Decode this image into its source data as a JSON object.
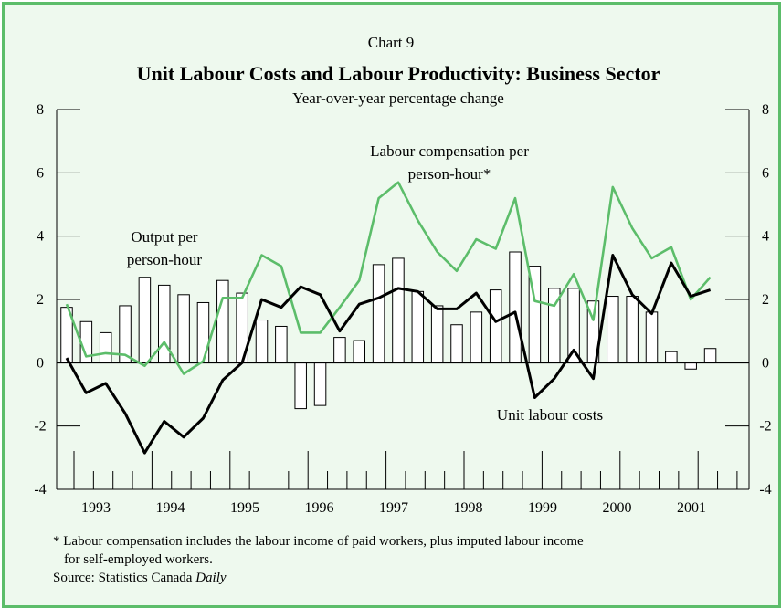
{
  "header": {
    "chart_number": "Chart 9",
    "title": "Unit Labour Costs and Labour Productivity: Business Sector",
    "subtitle": "Year-over-year percentage change"
  },
  "annotations": {
    "output_line1": "Output per",
    "output_line2": "person-hour",
    "comp_line1": "Labour compensation per",
    "comp_line2": "person-hour*",
    "ulc": "Unit labour costs"
  },
  "footnotes": {
    "note_line1": "* Labour compensation includes the labour income of paid workers, plus imputed labour income",
    "note_line2": "for self-employed workers.",
    "source_prefix": "Source: Statistics Canada ",
    "source_name": "Daily"
  },
  "colors": {
    "frame": "#5cbd6a",
    "background": "#eef9ee",
    "compensation_line": "#5cbd6a",
    "ulc_line": "#000000",
    "bar_fill": "#ffffff",
    "bar_stroke": "#000000"
  },
  "chart_data": {
    "type": "bar",
    "x_labels": [
      "1993",
      "1994",
      "1995",
      "1996",
      "1997",
      "1998",
      "1999",
      "2000",
      "2001"
    ],
    "ylim": [
      -4,
      8
    ],
    "yticks": [
      -4,
      -2,
      0,
      2,
      4,
      6,
      8
    ],
    "grid": false,
    "series": [
      {
        "name": "Output per person-hour",
        "type": "bar",
        "values": [
          1.75,
          1.3,
          0.95,
          1.8,
          2.7,
          2.45,
          2.15,
          1.9,
          2.6,
          2.2,
          1.35,
          1.15,
          -1.45,
          -1.35,
          0.8,
          0.7,
          3.1,
          3.3,
          2.25,
          1.8,
          1.2,
          1.6,
          2.3,
          3.5,
          3.05,
          2.35,
          2.35,
          1.95,
          2.1,
          2.1,
          1.6,
          0.35,
          -0.2,
          0.45
        ]
      },
      {
        "name": "Labour compensation per person-hour*",
        "type": "line",
        "values": [
          1.85,
          0.2,
          0.3,
          0.25,
          -0.1,
          0.65,
          -0.35,
          0.05,
          2.05,
          2.05,
          3.4,
          3.05,
          0.95,
          0.95,
          1.75,
          2.6,
          5.2,
          5.7,
          4.5,
          3.5,
          2.9,
          3.9,
          3.6,
          5.2,
          1.95,
          1.8,
          2.8,
          1.35,
          5.55,
          4.25,
          3.3,
          3.65,
          2.0,
          2.7
        ]
      },
      {
        "name": "Unit labour costs",
        "type": "line",
        "values": [
          0.15,
          -0.95,
          -0.65,
          -1.6,
          -2.85,
          -1.85,
          -2.35,
          -1.75,
          -0.55,
          0.0,
          2.0,
          1.75,
          2.4,
          2.15,
          1.0,
          1.85,
          2.05,
          2.35,
          2.25,
          1.7,
          1.7,
          2.2,
          1.3,
          1.6,
          -1.1,
          -0.5,
          0.4,
          -0.5,
          3.4,
          2.15,
          1.55,
          3.15,
          2.1,
          2.3
        ]
      }
    ]
  }
}
